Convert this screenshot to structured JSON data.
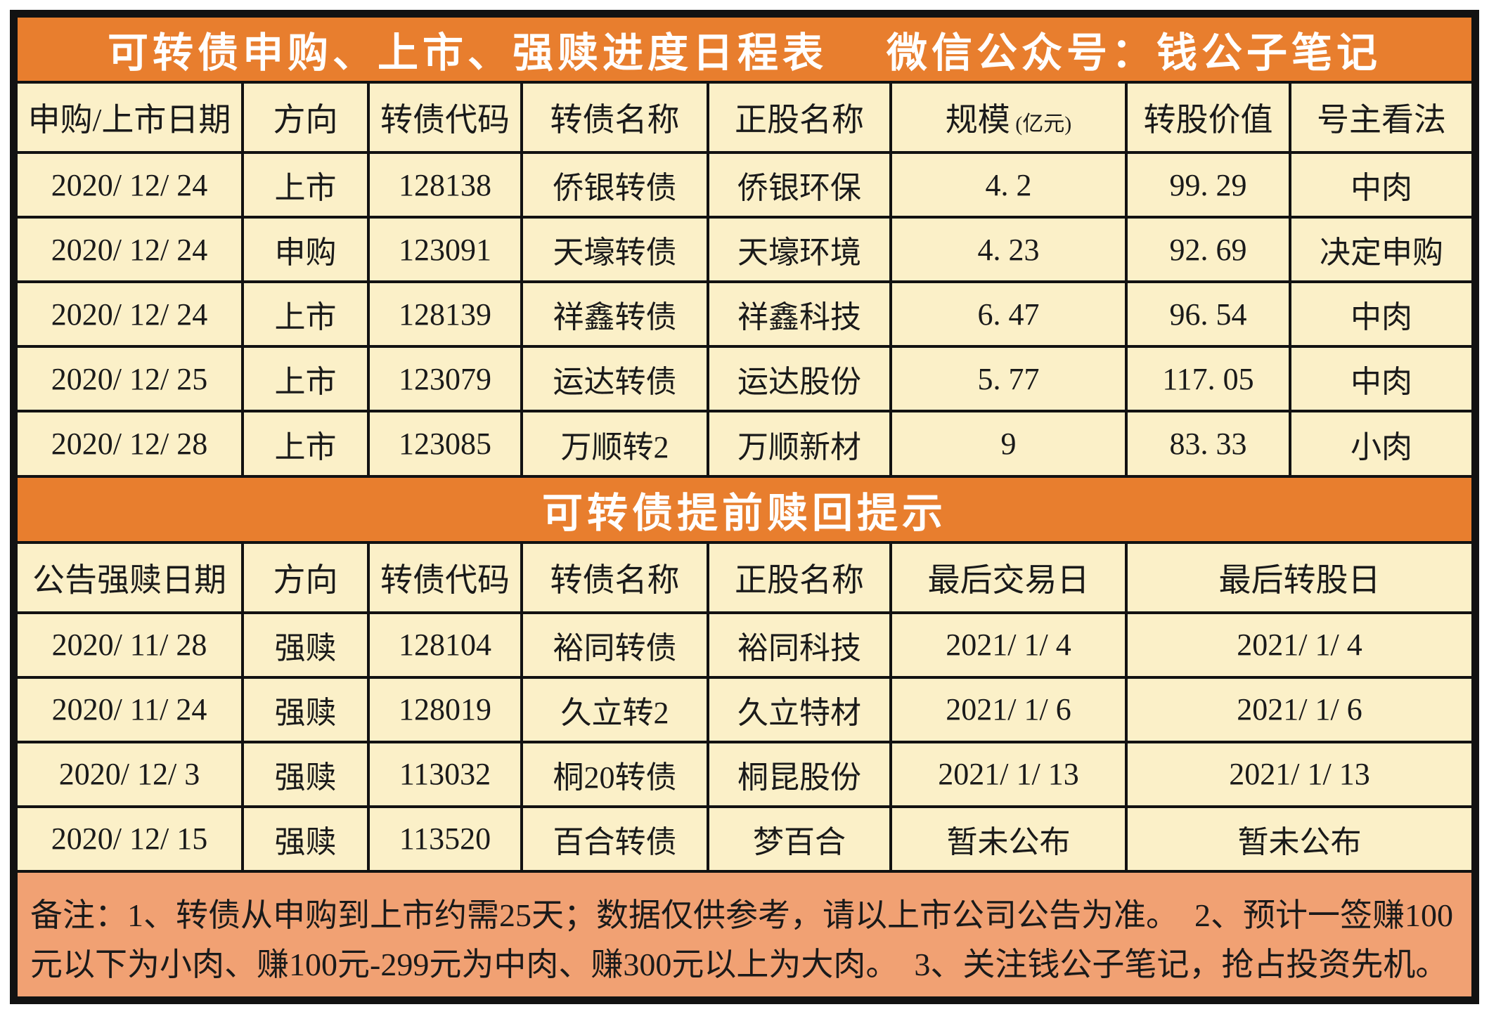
{
  "colors": {
    "banner_orange": "#E87E2E",
    "cell_cream": "#FBF0C8",
    "note_salmon": "#F1A173",
    "border_black": "#121212",
    "banner_text": "#FFFFFF",
    "cell_text": "#1A1A1A"
  },
  "banner1": {
    "title": "可转债申购、上市、强赎进度日程表",
    "subtitle": "微信公众号：钱公子笔记"
  },
  "table1": {
    "headers": [
      {
        "label": "申购/上市日期"
      },
      {
        "label": "方向"
      },
      {
        "label": "转债代码"
      },
      {
        "label": "转债名称"
      },
      {
        "label": "正股名称"
      },
      {
        "label": "规模",
        "sub": "(亿元)"
      },
      {
        "label": "转股价值"
      },
      {
        "label": "号主看法"
      }
    ],
    "rows": [
      [
        "2020/ 12/ 24",
        "上市",
        "128138",
        "侨银转债",
        "侨银环保",
        "4. 2",
        "99. 29",
        "中肉"
      ],
      [
        "2020/ 12/ 24",
        "申购",
        "123091",
        "天壕转债",
        "天壕环境",
        "4. 23",
        "92. 69",
        "决定申购"
      ],
      [
        "2020/ 12/ 24",
        "上市",
        "128139",
        "祥鑫转债",
        "祥鑫科技",
        "6. 47",
        "96. 54",
        "中肉"
      ],
      [
        "2020/ 12/ 25",
        "上市",
        "123079",
        "运达转债",
        "运达股份",
        "5. 77",
        "117. 05",
        "中肉"
      ],
      [
        "2020/ 12/ 28",
        "上市",
        "123085",
        "万顺转2",
        "万顺新材",
        "9",
        "83. 33",
        "小肉"
      ]
    ]
  },
  "banner2": {
    "title": "可转债提前赎回提示"
  },
  "table2": {
    "headers": [
      {
        "label": "公告强赎日期"
      },
      {
        "label": "方向"
      },
      {
        "label": "转债代码"
      },
      {
        "label": "转债名称"
      },
      {
        "label": "正股名称"
      },
      {
        "label": "最后交易日"
      },
      {
        "label": "最后转股日"
      }
    ],
    "rows": [
      [
        "2020/ 11/ 28",
        "强赎",
        "128104",
        "裕同转债",
        "裕同科技",
        "2021/ 1/ 4",
        "2021/ 1/ 4"
      ],
      [
        "2020/ 11/ 24",
        "强赎",
        "128019",
        "久立转2",
        "久立特材",
        "2021/ 1/ 6",
        "2021/ 1/ 6"
      ],
      [
        "2020/ 12/ 3",
        "强赎",
        "113032",
        "桐20转债",
        "桐昆股份",
        "2021/ 1/ 13",
        "2021/ 1/ 13"
      ],
      [
        "2020/ 12/ 15",
        "强赎",
        "113520",
        "百合转债",
        "梦百合",
        "暂未公布",
        "暂未公布"
      ]
    ]
  },
  "note": {
    "text": "备注：1、转债从申购到上市约需25天；数据仅供参考，请以上市公司公告为准。　2、预计一签赚100元以下为小肉、赚100元-299元为中肉、赚300元以上为大肉。　3、关注钱公子笔记，抢占投资先机。"
  }
}
